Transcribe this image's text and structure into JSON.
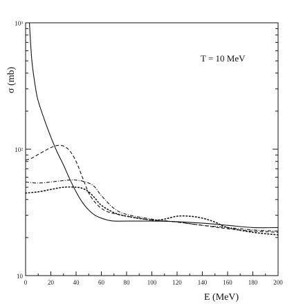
{
  "chart_data": {
    "type": "line",
    "title": "",
    "annotation": "T = 10 MeV",
    "xlabel": "E (MeV)",
    "ylabel": "σ  (mb)",
    "xlim": [
      0,
      200
    ],
    "ylim": [
      10,
      1000
    ],
    "yscale": "log",
    "grid": false,
    "x_ticks": [
      0,
      20,
      40,
      60,
      80,
      100,
      120,
      140,
      160,
      180,
      200
    ],
    "x_tick_labels": [
      "0",
      "20",
      "40",
      "60",
      "80",
      "100",
      "120",
      "140",
      "160",
      "180",
      "200"
    ],
    "y_ticks": [
      10,
      100,
      1000
    ],
    "y_tick_labels": [
      "10",
      "10²",
      "10³"
    ],
    "series": [
      {
        "style": "solid",
        "x": [
          3,
          5,
          8,
          10,
          15,
          20,
          25,
          30,
          35,
          40,
          45,
          50,
          55,
          60,
          65,
          70,
          80,
          100,
          120,
          140,
          160,
          180,
          200
        ],
        "y": [
          1000,
          500,
          300,
          240,
          170,
          125,
          95,
          75,
          58,
          46,
          38,
          33,
          30,
          28.5,
          27.5,
          27,
          27,
          27,
          26.7,
          26,
          25,
          24,
          24
        ]
      },
      {
        "style": "dashed",
        "x": [
          0,
          5,
          10,
          15,
          20,
          25,
          30,
          35,
          40,
          45,
          50,
          55,
          60,
          65,
          70,
          80,
          100,
          120,
          140,
          160,
          180,
          200
        ],
        "y": [
          82,
          85,
          91,
          97,
          103,
          107,
          106,
          97,
          80,
          60,
          45,
          38,
          34,
          32,
          31,
          29.5,
          27.5,
          26.5,
          25,
          23.5,
          22.5,
          22
        ]
      },
      {
        "style": "dash-dot",
        "x": [
          0,
          10,
          20,
          30,
          40,
          50,
          55,
          60,
          70,
          80,
          100,
          120,
          140,
          160,
          180,
          200
        ],
        "y": [
          55,
          54,
          55,
          56.5,
          57,
          54,
          50,
          43,
          34,
          30.5,
          28,
          26.5,
          25,
          24,
          23,
          22.5
        ]
      },
      {
        "style": "dotted",
        "x": [
          0,
          10,
          20,
          30,
          40,
          45,
          50,
          55,
          60,
          70,
          80,
          100,
          110,
          120,
          130,
          140,
          150,
          160,
          180,
          200
        ],
        "y": [
          45,
          46,
          48,
          50,
          50,
          49,
          46,
          41,
          36,
          31.5,
          29.5,
          27.5,
          28,
          29.5,
          29.5,
          28.5,
          26.5,
          24,
          22,
          21
        ]
      }
    ]
  }
}
